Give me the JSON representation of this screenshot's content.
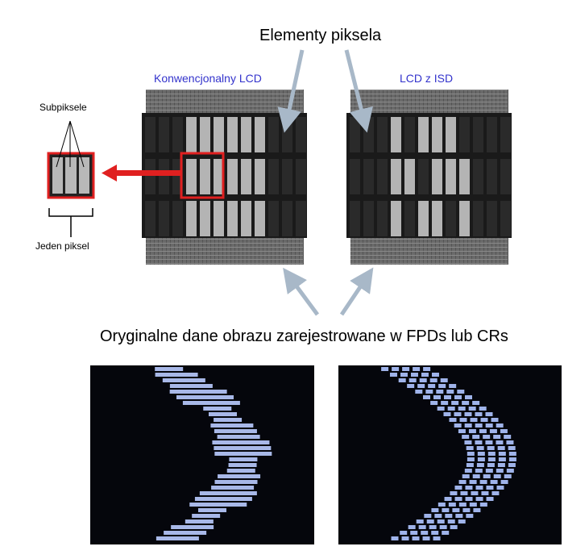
{
  "title": "Elementy piksela",
  "panels": {
    "conventional_label": "Konwencjonalny LCD",
    "isd_label": "LCD z ISD"
  },
  "inset": {
    "subpixels_label": "Subpiksele",
    "one_pixel_label": "Jeden piksel"
  },
  "caption": "Oryginalne dane obrazu zarejestrowane w FPDs lub CRs",
  "colors": {
    "label_blue": "#3333cc",
    "highlight_red": "#e02020",
    "arrow_gray_blue": "#a8b8c8"
  }
}
